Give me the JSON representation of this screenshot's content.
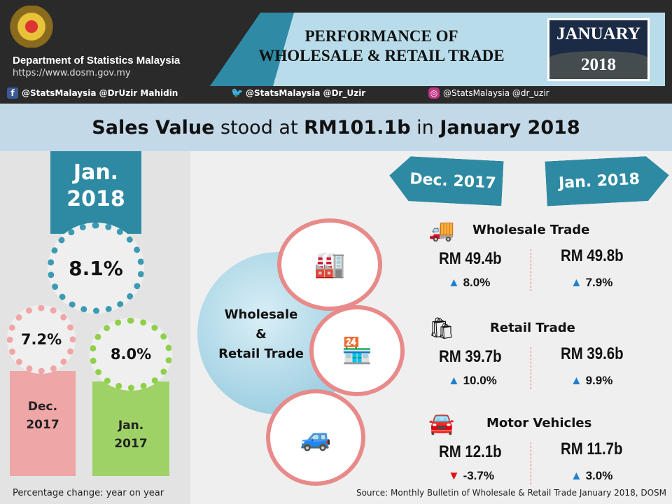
{
  "header": {
    "department": "Department of Statistics Malaysia",
    "url": "https://www.dosm.gov.my",
    "social": [
      {
        "icon": "facebook-icon",
        "text": "@StatsMalaysia  @DrUzir Mahidin"
      },
      {
        "icon": "twitter-icon",
        "text": "@StatsMalaysia  @Dr_Uzir"
      },
      {
        "icon": "instagram-icon",
        "text": "@StatsMalaysia  @dr_uzir"
      }
    ],
    "title_line1": "PERFORMANCE OF",
    "title_line2": "WHOLESALE & RETAIL TRADE",
    "month": "JANUARY",
    "year": "2018"
  },
  "headline": {
    "p1": "Sales Value",
    "p2": " stood at ",
    "p3": "RM101.1b",
    "p4": " in ",
    "p5": "January 2018"
  },
  "growth": {
    "current_label_1": "Jan.",
    "current_label_2": "2018",
    "current": "8.1%",
    "dec_value": "7.2%",
    "dec_label_1": "Dec.",
    "dec_label_2": "2017",
    "jan_value": "8.0%",
    "jan_label_1": "Jan.",
    "jan_label_2": "2017",
    "note": "Percentage change: year on year"
  },
  "center_label": {
    "l1": "Wholesale",
    "l2": "&",
    "l3": "Retail Trade"
  },
  "periods": {
    "left": "Dec. 2017",
    "right": "Jan. 2018"
  },
  "sectors": [
    {
      "name": "Wholesale Trade",
      "icon": "truck-icon",
      "dec_value": "RM 49.4b",
      "dec_change": "8.0%",
      "dec_dir": "up",
      "jan_value": "RM 49.8b",
      "jan_change": "7.9%",
      "jan_dir": "up"
    },
    {
      "name": "Retail Trade",
      "icon": "shopping-bag-icon",
      "dec_value": "RM 39.7b",
      "dec_change": "10.0%",
      "dec_dir": "up",
      "jan_value": "RM 39.6b",
      "jan_change": "9.9%",
      "jan_dir": "up"
    },
    {
      "name": "Motor Vehicles",
      "icon": "car-icon",
      "dec_value": "RM 12.1b",
      "dec_change": "-3.7%",
      "dec_dir": "down",
      "jan_value": "RM 11.7b",
      "jan_change": "3.0%",
      "jan_dir": "up"
    }
  ],
  "source": "Source: Monthly Bulletin of Wholesale & Retail Trade January 2018, DOSM",
  "colors": {
    "teal": "#2e8aa3",
    "pink": "#f2b8b8",
    "green": "#9ed266",
    "up": "#1f7fcf",
    "down": "#e01010"
  }
}
